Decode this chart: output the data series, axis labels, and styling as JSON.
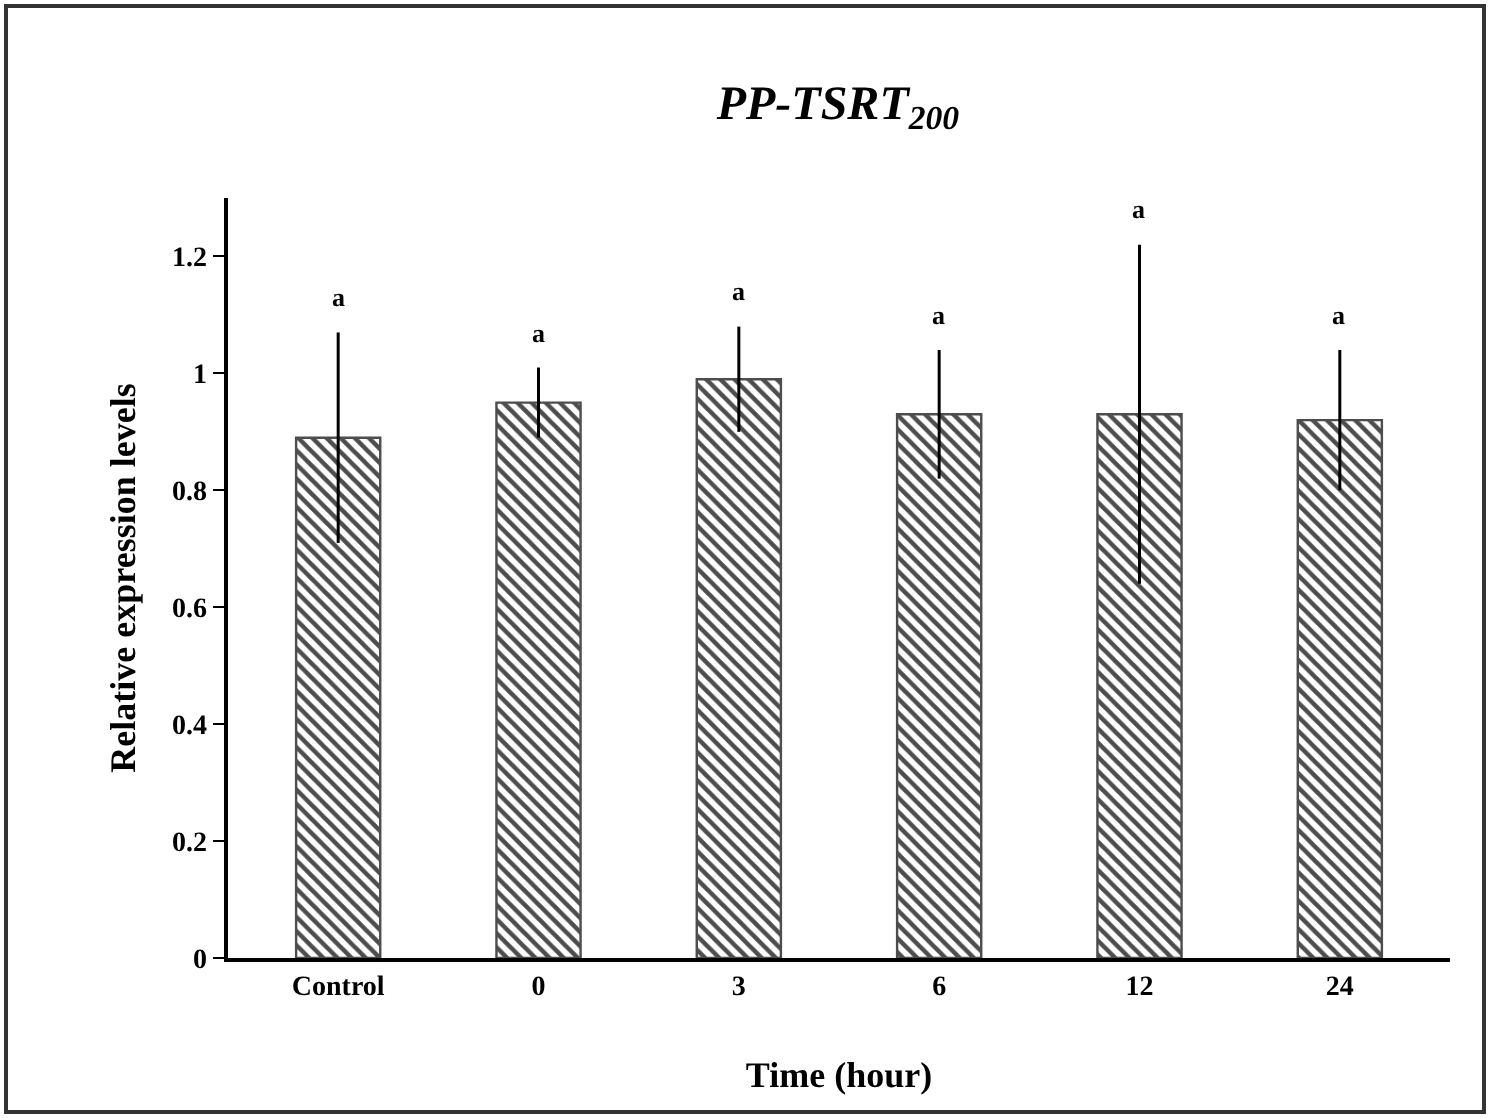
{
  "chart_data": {
    "type": "bar",
    "title": "PP-TSRT$_{200}$",
    "xlabel": "Time (hour)",
    "ylabel": "Relative expression levels",
    "categories": [
      "Control",
      "0",
      "3",
      "6",
      "12",
      "24"
    ],
    "values": [
      0.89,
      0.95,
      0.99,
      0.93,
      0.93,
      0.92
    ],
    "errors": [
      0.18,
      0.06,
      0.09,
      0.11,
      0.29,
      0.12
    ],
    "color": "#4d4d4d",
    "ylim": [
      0,
      1.3
    ],
    "yticks": [
      0,
      0.2,
      0.4,
      0.6,
      0.8,
      1,
      1.2
    ],
    "grid": false,
    "annotations": [
      "a",
      "a",
      "a",
      "a",
      "a",
      "a"
    ]
  }
}
